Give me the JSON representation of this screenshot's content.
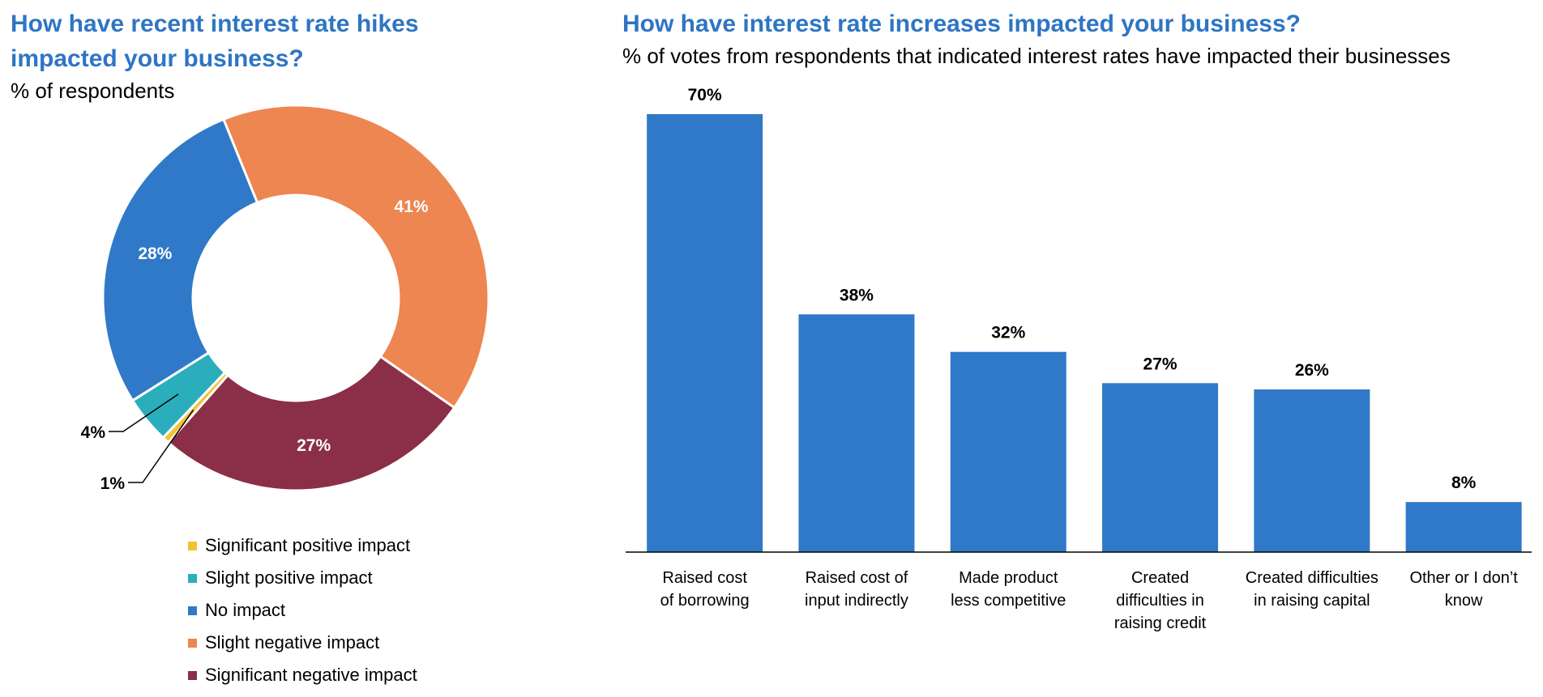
{
  "chart_data": [
    {
      "type": "pie",
      "title": "How have recent interest rate hikes impacted your business?",
      "subtitle": "% of respondents",
      "slices": [
        {
          "label": "Slight negative impact",
          "value": 41,
          "display": "41%",
          "color": "#ed8650"
        },
        {
          "label": "Significant negative impact",
          "value": 27,
          "display": "27%",
          "color": "#8b2e47"
        },
        {
          "label": "Significant positive impact",
          "value": 0.6,
          "display": "1%",
          "color": "#f1c232"
        },
        {
          "label": "Slight positive impact",
          "value": 4,
          "display": "4%",
          "color": "#2aaebc"
        },
        {
          "label": "No impact",
          "value": 28,
          "display": "28%",
          "color": "#2f79c8"
        }
      ],
      "legend": [
        {
          "label": "Significant positive impact",
          "color": "#f1c232"
        },
        {
          "label": "Slight positive impact",
          "color": "#2aaebc"
        },
        {
          "label": "No impact",
          "color": "#2f79c8"
        },
        {
          "label": "Slight negative impact",
          "color": "#ed8650"
        },
        {
          "label": "Significant negative impact",
          "color": "#8b2e47"
        }
      ]
    },
    {
      "type": "bar",
      "title": "How have interest rate increases impacted your business?",
      "subtitle": "% of votes from respondents that indicated interest rates have impacted their businesses",
      "categories": [
        [
          "Raised cost",
          "of borrowing"
        ],
        [
          "Raised cost of",
          "input indirectly"
        ],
        [
          "Made product",
          "less competitive"
        ],
        [
          "Created",
          "difficulties in",
          "raising credit"
        ],
        [
          "Created difficulties",
          "in raising capital"
        ],
        [
          "Other or I don’t",
          "know"
        ]
      ],
      "values": [
        70,
        38,
        32,
        27,
        26,
        8
      ],
      "labels": [
        "70%",
        "38%",
        "32%",
        "27%",
        "26%",
        "8%"
      ],
      "ylim": [
        0,
        75
      ],
      "color": "#2f79c8"
    }
  ]
}
